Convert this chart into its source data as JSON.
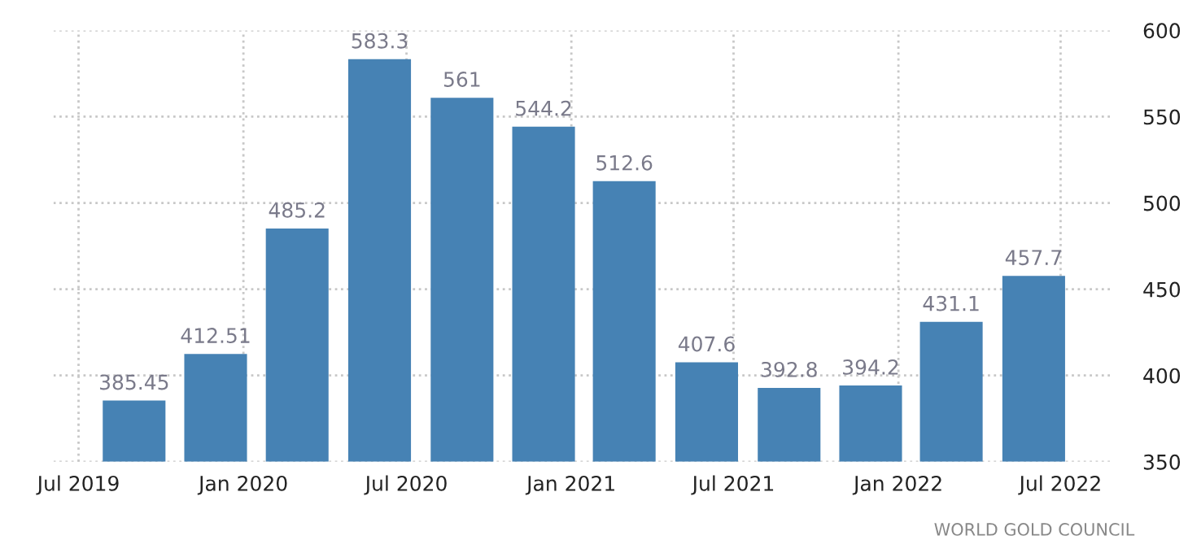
{
  "chart_data": {
    "type": "bar",
    "x": [
      "2019-09-01",
      "2019-12-01",
      "2020-03-01",
      "2020-06-01",
      "2020-09-01",
      "2020-12-01",
      "2021-03-01",
      "2021-06-01",
      "2021-09-01",
      "2021-12-01",
      "2022-03-01",
      "2022-06-01"
    ],
    "values": [
      385.45,
      412.51,
      485.2,
      583.3,
      561,
      544.2,
      512.6,
      407.6,
      392.8,
      394.2,
      431.1,
      457.7
    ],
    "color": "#4682b4",
    "data_labels": true,
    "xlim": [
      "2019-06-03",
      "2022-08-26"
    ],
    "xticks": [
      {
        "value": "2019-07-01",
        "label": "Jul 2019"
      },
      {
        "value": "2020-01-01",
        "label": "Jan 2020"
      },
      {
        "value": "2020-07-01",
        "label": "Jul 2020"
      },
      {
        "value": "2021-01-01",
        "label": "Jan 2021"
      },
      {
        "value": "2021-07-01",
        "label": "Jul 2021"
      },
      {
        "value": "2022-01-01",
        "label": "Jan 2022"
      },
      {
        "value": "2022-07-01",
        "label": "Jul 2022"
      }
    ],
    "ylim": [
      350,
      600
    ],
    "yticks": [
      350,
      400,
      450,
      500,
      550,
      600
    ],
    "grid": true,
    "annotations": [
      "WORLD GOLD COUNCIL"
    ]
  }
}
